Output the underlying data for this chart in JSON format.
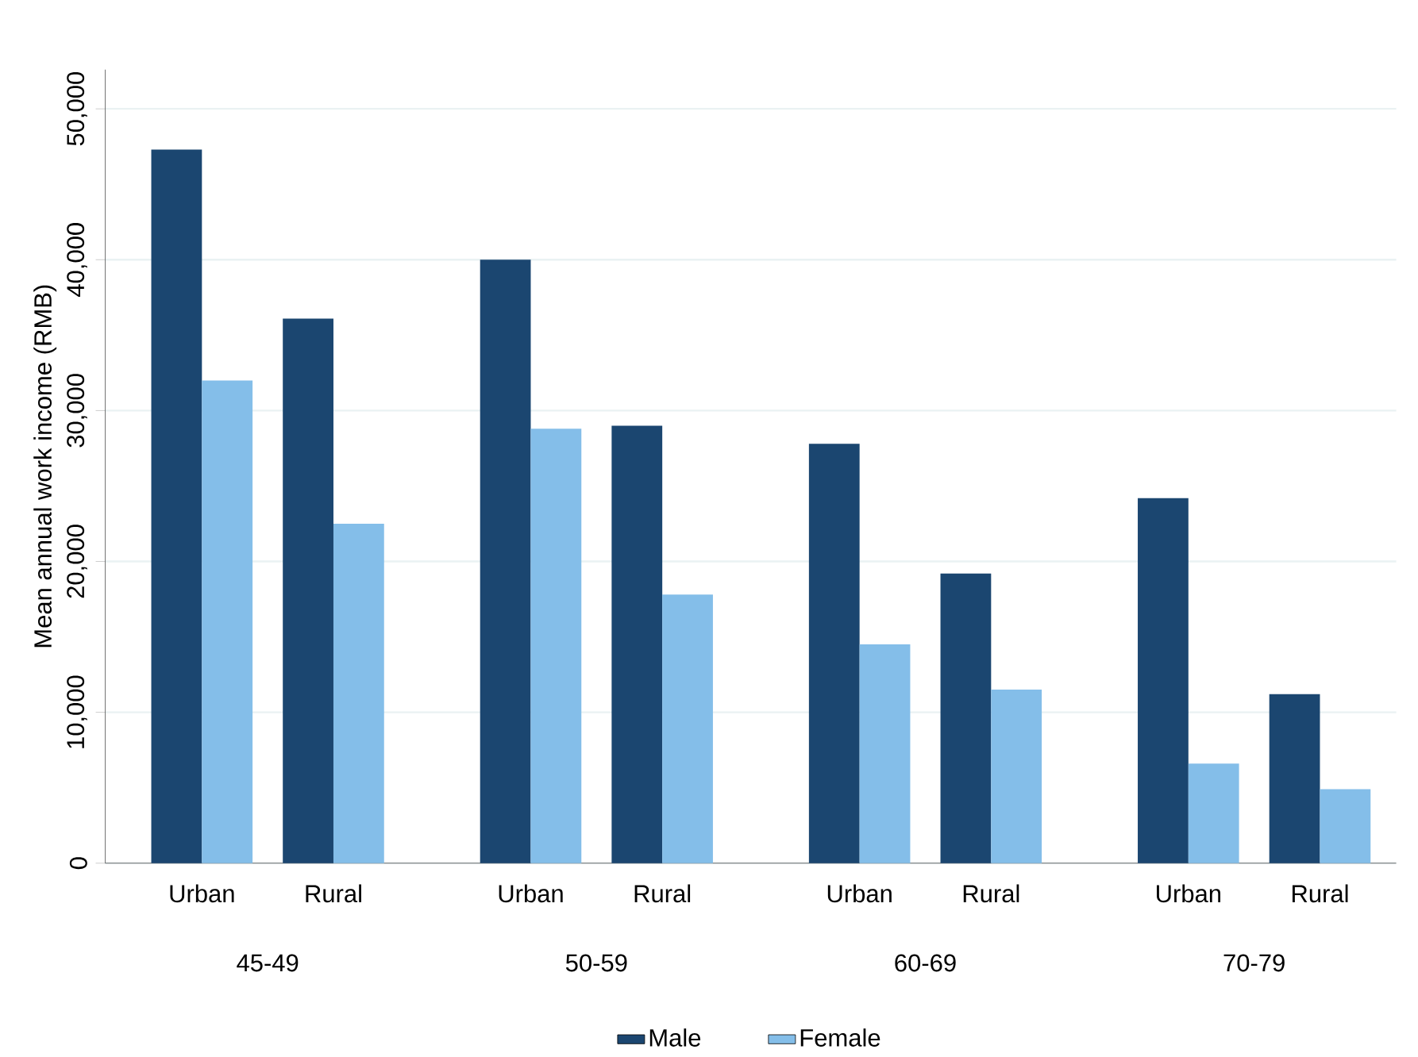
{
  "chart_data": {
    "type": "bar",
    "ylabel": "Mean annual work income (RMB)",
    "categories": [
      "Urban",
      "Rural",
      "Urban",
      "Rural",
      "Urban",
      "Rural",
      "Urban",
      "Rural"
    ],
    "annotations": [
      "45-49",
      "50-59",
      "60-69",
      "70-79"
    ],
    "series": [
      {
        "name": "Male",
        "color": "#1b4670",
        "values": [
          47300,
          36100,
          40000,
          29000,
          27800,
          19200,
          24200,
          11200
        ]
      },
      {
        "name": "Female",
        "color": "#84bee9",
        "values": [
          32000,
          22500,
          28800,
          17800,
          14500,
          11500,
          6600,
          4900
        ]
      }
    ],
    "ylim": [
      0,
      52600
    ],
    "yticks": [
      0,
      {
        "value": 10000,
        "label": "10,000"
      },
      {
        "value": 20000,
        "label": "20,000"
      },
      {
        "value": 30000,
        "label": "30,000"
      },
      {
        "value": 40000,
        "label": "40,000"
      },
      {
        "value": 50000,
        "label": "50,000"
      }
    ],
    "grid": "y",
    "legend": "bottom"
  }
}
